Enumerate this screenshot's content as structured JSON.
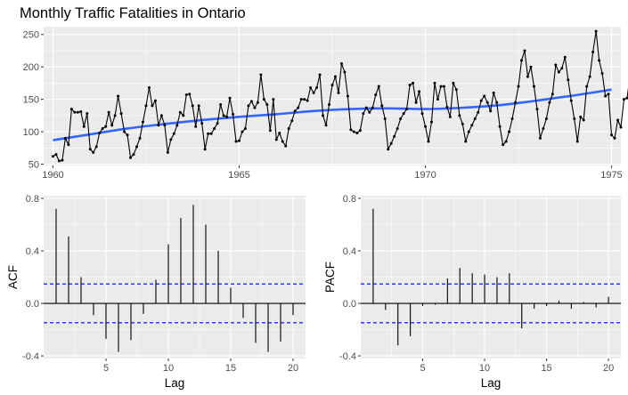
{
  "colors": {
    "panel_background": "#ebebeb",
    "grid": "#ffffff",
    "series_line": "#000000",
    "smooth_line": "#3366ff",
    "confidence_line": "#0000ff"
  },
  "chart_data": [
    {
      "type": "line",
      "title": "Monthly Traffic Fatalities in Ontario",
      "xlabel": "",
      "ylabel": "",
      "xlim": [
        1959.75,
        1975.25
      ],
      "ylim": [
        48,
        262
      ],
      "x_ticks": [
        1960,
        1965,
        1970,
        1975
      ],
      "x_tick_labels": [
        "1960",
        "1965",
        "1970",
        "1975"
      ],
      "y_ticks": [
        50,
        100,
        150,
        200,
        250
      ],
      "y_tick_labels": [
        "50",
        "100",
        "150",
        "200",
        "250"
      ],
      "grid": true,
      "legend": "none",
      "series": [
        {
          "start": 1960,
          "frequency": 12,
          "style": "line-with-points",
          "values": [
            62,
            65,
            55,
            56,
            90,
            80,
            135,
            130,
            130,
            131,
            108,
            128,
            73,
            68,
            77,
            98,
            105,
            108,
            130,
            110,
            125,
            155,
            128,
            100,
            95,
            60,
            65,
            77,
            90,
            115,
            140,
            168,
            140,
            148,
            110,
            125,
            110,
            68,
            88,
            97,
            110,
            130,
            125,
            157,
            158,
            140,
            108,
            140,
            113,
            73,
            97,
            97,
            105,
            113,
            142,
            125,
            123,
            152,
            127,
            85,
            86,
            100,
            105,
            140,
            147,
            137,
            145,
            188,
            150,
            142,
            102,
            150,
            88,
            98,
            85,
            78,
            105,
            117,
            132,
            137,
            150,
            150,
            148,
            168,
            160,
            168,
            188,
            125,
            110,
            142,
            172,
            185,
            160,
            205,
            192,
            155,
            103,
            100,
            98,
            102,
            128,
            137,
            130,
            137,
            157,
            170,
            140,
            120,
            73,
            82,
            93,
            105,
            120,
            128,
            135,
            172,
            175,
            145,
            162,
            128,
            108,
            85,
            115,
            175,
            150,
            170,
            170,
            138,
            123,
            175,
            165,
            125,
            112,
            85,
            100,
            110,
            120,
            130,
            148,
            155,
            145,
            132,
            160,
            145,
            108,
            80,
            85,
            100,
            120,
            145,
            170,
            210,
            225,
            185,
            200,
            170,
            135,
            90,
            105,
            120,
            145,
            158,
            203,
            192,
            198,
            215,
            180,
            148,
            120,
            85,
            123,
            118,
            170,
            185,
            223,
            255,
            210,
            190,
            155,
            158,
            95,
            90,
            118,
            107,
            150,
            152,
            188,
            213,
            178,
            175,
            170,
            175,
            123
          ]
        },
        {
          "name": "",
          "style": "smooth",
          "x": [
            1960,
            1961,
            1962,
            1963,
            1964,
            1965,
            1966,
            1967,
            1968,
            1969,
            1970,
            1971,
            1972,
            1973,
            1974,
            1975
          ],
          "values": [
            87,
            96,
            105,
            112,
            118,
            123,
            127,
            132,
            135,
            136,
            135,
            137,
            141,
            148,
            156,
            165
          ]
        }
      ]
    },
    {
      "type": "bar",
      "title": "",
      "xlabel": "Lag",
      "ylabel": "ACF",
      "xlim": [
        0,
        21
      ],
      "ylim": [
        -0.42,
        0.82
      ],
      "x_ticks": [
        5,
        10,
        15,
        20
      ],
      "x_tick_labels": [
        "5",
        "10",
        "15",
        "20"
      ],
      "y_ticks": [
        -0.4,
        0,
        0.4,
        0.8
      ],
      "y_tick_labels": [
        "-0.4",
        "0.0",
        "0.4",
        "0.8"
      ],
      "confidence_bounds": [
        -0.148,
        0.148
      ],
      "grid": true,
      "categories": [
        1,
        2,
        3,
        4,
        5,
        6,
        7,
        8,
        9,
        10,
        11,
        12,
        13,
        14,
        15,
        16,
        17,
        18,
        19,
        20
      ],
      "values": [
        0.72,
        0.51,
        0.2,
        -0.09,
        -0.27,
        -0.37,
        -0.28,
        -0.08,
        0.18,
        0.45,
        0.65,
        0.75,
        0.6,
        0.4,
        0.12,
        -0.11,
        -0.3,
        -0.37,
        -0.29,
        -0.09
      ]
    },
    {
      "type": "bar",
      "title": "",
      "xlabel": "Lag",
      "ylabel": "PACF",
      "xlim": [
        0,
        21
      ],
      "ylim": [
        -0.42,
        0.82
      ],
      "x_ticks": [
        5,
        10,
        15,
        20
      ],
      "x_tick_labels": [
        "5",
        "10",
        "15",
        "20"
      ],
      "y_ticks": [
        -0.4,
        0,
        0.4,
        0.8
      ],
      "y_tick_labels": [
        "-0.4",
        "0.0",
        "0.4",
        "0.8"
      ],
      "confidence_bounds": [
        -0.148,
        0.148
      ],
      "grid": true,
      "categories": [
        1,
        2,
        3,
        4,
        5,
        6,
        7,
        8,
        9,
        10,
        11,
        12,
        13,
        14,
        15,
        16,
        17,
        18,
        19,
        20
      ],
      "values": [
        0.72,
        -0.05,
        -0.32,
        -0.25,
        -0.02,
        -0.01,
        0.19,
        0.27,
        0.23,
        0.22,
        0.2,
        0.23,
        -0.19,
        -0.04,
        -0.02,
        0.02,
        -0.04,
        0.01,
        -0.03,
        0.05
      ]
    }
  ]
}
